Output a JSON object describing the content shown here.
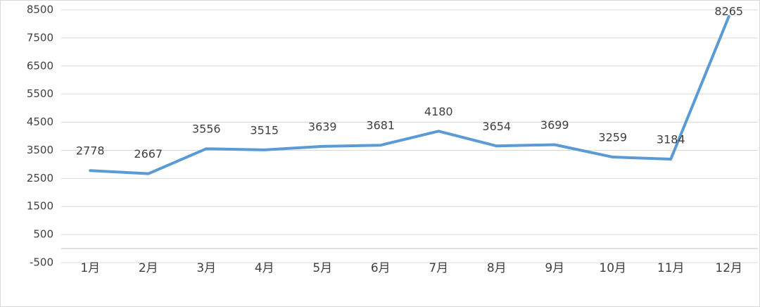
{
  "chart_data": {
    "type": "line",
    "categories": [
      "1月",
      "2月",
      "3月",
      "4月",
      "5月",
      "6月",
      "7月",
      "8月",
      "9月",
      "10月",
      "11月",
      "12月"
    ],
    "values": [
      2778,
      2667,
      3556,
      3515,
      3639,
      3681,
      4180,
      3654,
      3699,
      3259,
      3184,
      8265
    ],
    "color": "#5b9bd5",
    "ylim": [
      -500,
      8500
    ],
    "yticks": [
      -500,
      500,
      1500,
      2500,
      3500,
      4500,
      5500,
      6500,
      7500,
      8500
    ],
    "grid": true
  }
}
